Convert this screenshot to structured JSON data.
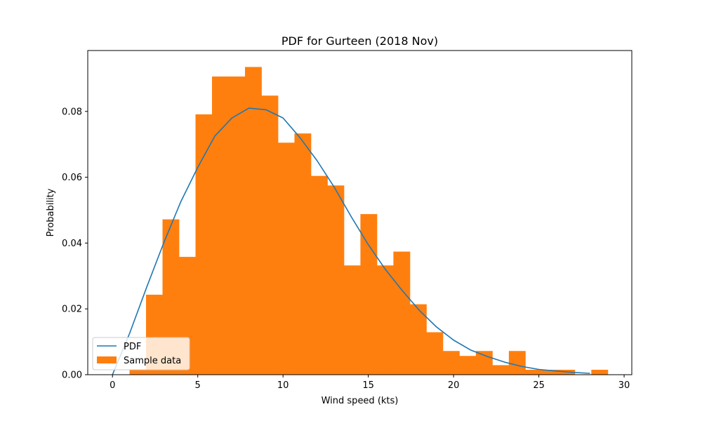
{
  "chart_data": {
    "type": "bar",
    "title": "PDF for Gurteen (2018 Nov)",
    "xlabel": "Wind speed (kts)",
    "ylabel": "Probability",
    "xlim": [
      -1.45,
      30.45
    ],
    "ylim": [
      0,
      0.0985
    ],
    "xticks": [
      0,
      5,
      10,
      15,
      20,
      25,
      30
    ],
    "xtick_labels": [
      "0",
      "5",
      "10",
      "15",
      "20",
      "25",
      "30"
    ],
    "yticks": [
      0,
      0.02,
      0.04,
      0.06,
      0.08
    ],
    "ytick_labels": [
      "0.00",
      "0.02",
      "0.04",
      "0.06",
      "0.08"
    ],
    "legend_position": "lower-left",
    "colors": {
      "pdf": "#1f77b4",
      "sample": "#ff7f0e"
    },
    "series": [
      {
        "name": "PDF",
        "kind": "line",
        "x": [
          0,
          1,
          2,
          3,
          4,
          5,
          6,
          7,
          8,
          9,
          10,
          11,
          12,
          13,
          14,
          15,
          16,
          17,
          18,
          19,
          20,
          21,
          22,
          23,
          24,
          25,
          26,
          27,
          28
        ],
        "y": [
          0.0,
          0.0125,
          0.0265,
          0.04,
          0.0525,
          0.063,
          0.0725,
          0.078,
          0.081,
          0.0805,
          0.078,
          0.072,
          0.065,
          0.057,
          0.048,
          0.0395,
          0.032,
          0.0255,
          0.0195,
          0.0145,
          0.0105,
          0.0075,
          0.0055,
          0.0038,
          0.0025,
          0.0016,
          0.0011,
          0.0007,
          0.0004
        ]
      },
      {
        "name": "Sample data",
        "kind": "histogram",
        "bin_width": 0.967,
        "bin_starts": [
          1.0,
          1.967,
          2.934,
          3.901,
          4.868,
          5.835,
          6.802,
          7.769,
          8.736,
          9.703,
          10.67,
          11.637,
          12.604,
          13.571,
          14.538,
          15.505,
          16.472,
          17.439,
          18.406,
          19.373,
          20.34,
          21.307,
          22.274,
          23.241,
          24.208,
          25.175,
          26.142,
          27.109,
          28.076
        ],
        "values": [
          0.0015,
          0.0243,
          0.0472,
          0.0358,
          0.0791,
          0.0906,
          0.0906,
          0.0935,
          0.0848,
          0.0705,
          0.0733,
          0.0604,
          0.0575,
          0.0332,
          0.0488,
          0.0332,
          0.0374,
          0.0214,
          0.0129,
          0.0072,
          0.0057,
          0.0072,
          0.0029,
          0.0072,
          0.0015,
          0.0015,
          0.0015,
          0.0,
          0.0015
        ]
      }
    ]
  }
}
